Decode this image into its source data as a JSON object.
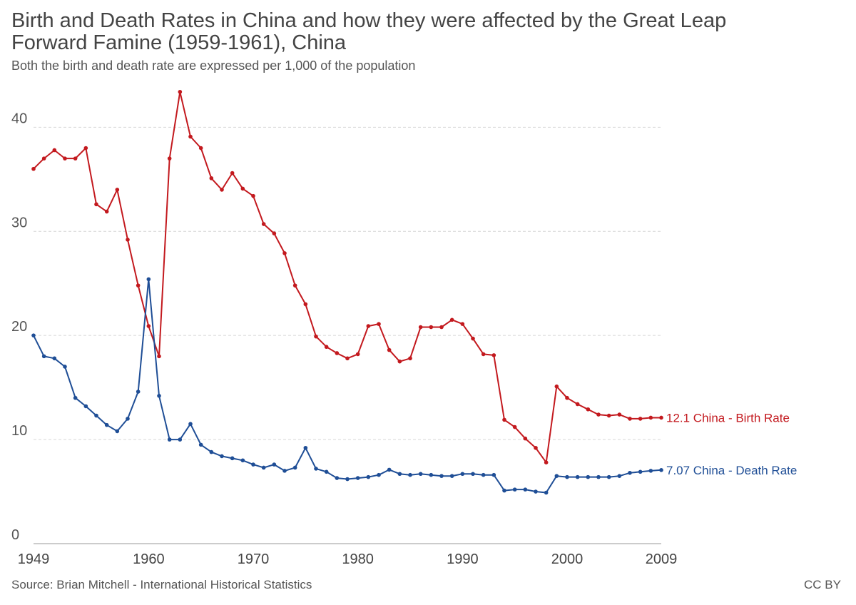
{
  "header": {
    "title": "Birth and Death Rates in China and how they were affected by the Great Leap Forward Famine (1959-1961), China",
    "subtitle": "Both the birth and death rate are expressed per 1,000 of the population"
  },
  "footer": {
    "source": "Source: Brian Mitchell - International Historical Statistics",
    "license": "CC BY"
  },
  "chart_data": {
    "type": "line",
    "title": "Birth and Death Rates in China and how they were affected by the Great Leap Forward Famine (1959-1961), China",
    "subtitle": "Both the birth and death rate are expressed per 1,000 of the population",
    "xlabel": "",
    "ylabel": "",
    "xlim": [
      1949,
      2009
    ],
    "ylim": [
      0,
      44
    ],
    "yticks": [
      0,
      10,
      20,
      30,
      40
    ],
    "xticks": [
      1949,
      1960,
      1970,
      1980,
      1990,
      2000,
      2009
    ],
    "grid": true,
    "x": [
      1949,
      1950,
      1951,
      1952,
      1953,
      1954,
      1955,
      1956,
      1957,
      1958,
      1959,
      1960,
      1961,
      1962,
      1963,
      1964,
      1965,
      1966,
      1967,
      1968,
      1969,
      1970,
      1971,
      1972,
      1973,
      1974,
      1975,
      1976,
      1977,
      1978,
      1979,
      1980,
      1981,
      1982,
      1983,
      1984,
      1985,
      1986,
      1987,
      1988,
      1989,
      1990,
      1991,
      1992,
      1993,
      1994,
      1995,
      1996,
      1997,
      1998,
      1999,
      2000,
      2001,
      2002,
      2003,
      2004,
      2005,
      2006,
      2007,
      2008,
      2009
    ],
    "series": [
      {
        "name": "China - Birth Rate",
        "end_label": "12.1 China - Birth Rate",
        "color": "#c3191e",
        "values": [
          36.0,
          37.0,
          37.8,
          37.0,
          37.0,
          38.0,
          32.6,
          31.9,
          34.0,
          29.2,
          24.8,
          20.9,
          18.0,
          37.0,
          43.4,
          39.1,
          38.0,
          35.1,
          34.0,
          35.6,
          34.1,
          33.4,
          30.7,
          29.8,
          27.9,
          24.8,
          23.0,
          19.9,
          18.9,
          18.3,
          17.8,
          18.2,
          20.9,
          21.1,
          18.6,
          17.5,
          17.8,
          20.8,
          20.8,
          20.8,
          21.5,
          21.1,
          19.7,
          18.2,
          18.1,
          11.9,
          11.2,
          10.1,
          9.2,
          7.8,
          15.1,
          14.0,
          13.4,
          12.9,
          12.4,
          12.3,
          12.4,
          12.0,
          12.0,
          12.1,
          12.1
        ]
      },
      {
        "name": "China - Death Rate",
        "end_label": "7.07 China - Death Rate",
        "color": "#1f4e96",
        "values": [
          20.0,
          18.0,
          17.8,
          17.0,
          14.0,
          13.2,
          12.3,
          11.4,
          10.8,
          12.0,
          14.6,
          25.4,
          14.2,
          10.0,
          10.0,
          11.5,
          9.5,
          8.8,
          8.4,
          8.2,
          8.0,
          7.6,
          7.3,
          7.6,
          7.0,
          7.3,
          9.2,
          7.2,
          6.9,
          6.3,
          6.2,
          6.3,
          6.4,
          6.6,
          7.1,
          6.7,
          6.6,
          6.7,
          6.6,
          6.5,
          6.5,
          6.7,
          6.7,
          6.6,
          6.6,
          5.1,
          5.2,
          5.2,
          5.0,
          4.9,
          6.5,
          6.4,
          6.4,
          6.4,
          6.4,
          6.4,
          6.5,
          6.8,
          6.9,
          7.0,
          7.07
        ]
      }
    ]
  }
}
